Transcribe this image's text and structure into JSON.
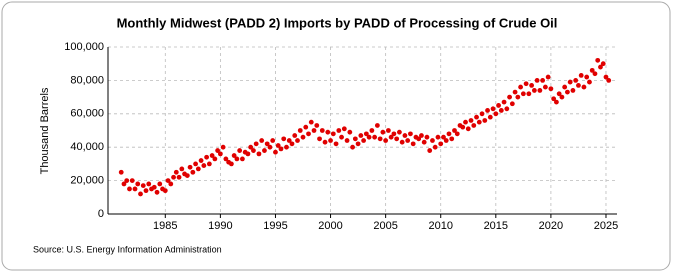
{
  "chart_data": {
    "type": "scatter",
    "title": "Monthly Midwest (PADD 2) Imports by PADD of Processing of Crude Oil",
    "y_label": "Thousand Barrels",
    "source": "Source: U.S. Energy Information Administration",
    "color": "#e00000",
    "grid": true,
    "xlim": [
      1979.8,
      2026
    ],
    "xticks": [
      1985,
      1990,
      1995,
      2000,
      2005,
      2010,
      2015,
      2020,
      2025
    ],
    "ylim": [
      0,
      100000
    ],
    "yticks": [
      0,
      {
        "value": 20000,
        "label": "20,000"
      },
      {
        "value": 40000,
        "label": "40,000"
      },
      {
        "value": 60000,
        "label": "60,000"
      },
      {
        "value": 80000,
        "label": "80,000"
      },
      {
        "value": 100000,
        "label": "100,000"
      }
    ],
    "x": [
      1981,
      1981.25,
      1981.5,
      1981.75,
      1982,
      1982.25,
      1982.5,
      1982.75,
      1983,
      1983.25,
      1983.5,
      1983.75,
      1984,
      1984.25,
      1984.5,
      1984.75,
      1985,
      1985.25,
      1985.5,
      1985.75,
      1986,
      1986.25,
      1986.5,
      1986.75,
      1987,
      1987.25,
      1987.5,
      1987.75,
      1988,
      1988.25,
      1988.5,
      1988.75,
      1989,
      1989.25,
      1989.5,
      1989.75,
      1990,
      1990.25,
      1990.5,
      1990.75,
      1991,
      1991.25,
      1991.5,
      1991.75,
      1992,
      1992.25,
      1992.5,
      1992.75,
      1993,
      1993.25,
      1993.5,
      1993.75,
      1994,
      1994.25,
      1994.5,
      1994.75,
      1995,
      1995.25,
      1995.5,
      1995.75,
      1996,
      1996.25,
      1996.5,
      1996.75,
      1997,
      1997.25,
      1997.5,
      1997.75,
      1998,
      1998.25,
      1998.5,
      1998.75,
      1999,
      1999.25,
      1999.5,
      1999.75,
      2000,
      2000.25,
      2000.5,
      2000.75,
      2001,
      2001.25,
      2001.5,
      2001.75,
      2002,
      2002.25,
      2002.5,
      2002.75,
      2003,
      2003.25,
      2003.5,
      2003.75,
      2004,
      2004.25,
      2004.5,
      2004.75,
      2005,
      2005.25,
      2005.5,
      2005.75,
      2006,
      2006.25,
      2006.5,
      2006.75,
      2007,
      2007.25,
      2007.5,
      2007.75,
      2008,
      2008.25,
      2008.5,
      2008.75,
      2009,
      2009.25,
      2009.5,
      2009.75,
      2010,
      2010.25,
      2010.5,
      2010.75,
      2011,
      2011.25,
      2011.5,
      2011.75,
      2012,
      2012.25,
      2012.5,
      2012.75,
      2013,
      2013.25,
      2013.5,
      2013.75,
      2014,
      2014.25,
      2014.5,
      2014.75,
      2015,
      2015.25,
      2015.5,
      2015.75,
      2016,
      2016.25,
      2016.5,
      2016.75,
      2017,
      2017.25,
      2017.5,
      2017.75,
      2018,
      2018.25,
      2018.5,
      2018.75,
      2019,
      2019.25,
      2019.5,
      2019.75,
      2020,
      2020.25,
      2020.5,
      2020.75,
      2021,
      2021.25,
      2021.5,
      2021.75,
      2022,
      2022.25,
      2022.5,
      2022.75,
      2023,
      2023.25,
      2023.5,
      2023.75,
      2024,
      2024.25,
      2024.5,
      2024.75,
      2025,
      2025.25
    ],
    "values": [
      25000,
      18000,
      20000,
      15000,
      20000,
      15000,
      18000,
      12000,
      17000,
      14000,
      18000,
      15000,
      16000,
      13000,
      18000,
      15000,
      14000,
      20000,
      18000,
      22000,
      25000,
      22000,
      27000,
      24000,
      23000,
      28000,
      25000,
      30000,
      27000,
      32000,
      29000,
      34000,
      30000,
      35000,
      33000,
      38000,
      36000,
      40000,
      33000,
      31000,
      30000,
      35000,
      33000,
      38000,
      33000,
      37000,
      36000,
      40000,
      38000,
      42000,
      36000,
      44000,
      38000,
      42000,
      40000,
      44000,
      37000,
      41000,
      39000,
      45000,
      40000,
      44000,
      42000,
      47000,
      44000,
      50000,
      46000,
      52000,
      48000,
      55000,
      50000,
      53000,
      45000,
      50000,
      43000,
      49000,
      44000,
      48000,
      42000,
      50000,
      46000,
      51000,
      44000,
      49000,
      40000,
      45000,
      42000,
      47000,
      44000,
      48000,
      46000,
      50000,
      46000,
      53000,
      45000,
      49000,
      44000,
      50000,
      46000,
      48000,
      45000,
      49000,
      43000,
      47000,
      44000,
      48000,
      42000,
      46000,
      45000,
      47000,
      43000,
      46000,
      38000,
      44000,
      40000,
      46000,
      42000,
      46000,
      44000,
      48000,
      45000,
      50000,
      48000,
      53000,
      52000,
      55000,
      51000,
      56000,
      53000,
      58000,
      55000,
      60000,
      56000,
      62000,
      58000,
      63000,
      60000,
      65000,
      62000,
      67000,
      63000,
      70000,
      66000,
      73000,
      70000,
      76000,
      72000,
      78000,
      72000,
      77000,
      74000,
      80000,
      74000,
      80000,
      76000,
      82000,
      75000,
      69000,
      67000,
      72000,
      70000,
      76000,
      73000,
      79000,
      74000,
      80000,
      77000,
      83000,
      76000,
      82000,
      79000,
      86000,
      84000,
      92000,
      88000,
      90000,
      82000,
      80000
    ]
  }
}
